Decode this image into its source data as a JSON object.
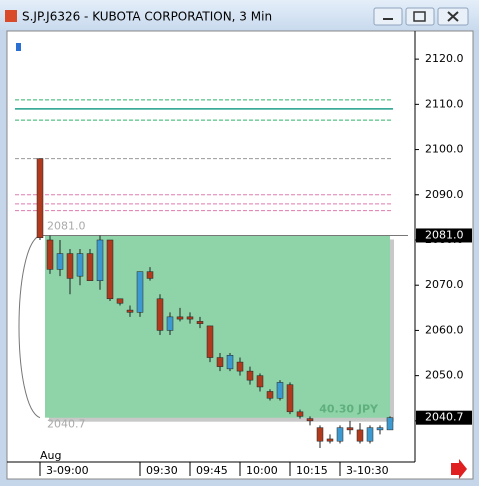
{
  "window_title": "S.JP.J6326 - KUBOTA CORPORATION, 3 Min",
  "chart_data": {
    "type": "candlestick",
    "bull_color": "#3d9ad1",
    "bear_color": "#b03a1e",
    "x": [
      0,
      1,
      2,
      3,
      4,
      5,
      6,
      7,
      8,
      9,
      10,
      11,
      12,
      13,
      14,
      15,
      16,
      17,
      18,
      19,
      20,
      21,
      22,
      23,
      24,
      25,
      26,
      27,
      28,
      29,
      30,
      31,
      32,
      33,
      34,
      35
    ],
    "open": [
      2098,
      2080,
      2073.5,
      2077,
      2072,
      2077,
      2071,
      2080,
      2067,
      2064.5,
      2064,
      2073,
      2067,
      2060,
      2063,
      2063,
      2062,
      2061,
      2054,
      2051.5,
      2053,
      2051,
      2050,
      2046.5,
      2045,
      2048,
      2042,
      2040.5,
      2038.5,
      2036,
      2035.5,
      2038.5,
      2038,
      2035.5,
      2038,
      2038
    ],
    "high": [
      2098,
      2081,
      2080,
      2078,
      2078,
      2078,
      2081,
      2080,
      2067,
      2065.5,
      2073,
      2074,
      2068,
      2064,
      2065,
      2064,
      2063,
      2061,
      2055,
      2055,
      2054,
      2052,
      2050.5,
      2047,
      2049,
      2048.5,
      2042.5,
      2041,
      2039,
      2037,
      2039,
      2040,
      2039.5,
      2039,
      2039,
      2041
    ],
    "low": [
      2080,
      2072.5,
      2072,
      2068,
      2070,
      2071,
      2069,
      2066.5,
      2065.5,
      2063,
      2063,
      2071,
      2059,
      2059,
      2062,
      2061.5,
      2060.5,
      2053,
      2051,
      2051,
      2050,
      2048,
      2046.5,
      2044.5,
      2044.5,
      2041.5,
      2040.5,
      2039,
      2034,
      2035,
      2035,
      2037,
      2035,
      2035,
      2037,
      2038
    ],
    "close": [
      2080.5,
      2073.5,
      2077,
      2071.5,
      2077,
      2071,
      2080,
      2067,
      2066,
      2064,
      2073,
      2071.5,
      2060,
      2063,
      2062.5,
      2062.5,
      2061.5,
      2054,
      2052,
      2054.5,
      2051,
      2049,
      2047.5,
      2045,
      2048.5,
      2042,
      2041,
      2040,
      2035.5,
      2035.5,
      2038.5,
      2038,
      2035.5,
      2038.5,
      2038.5,
      2040.7
    ],
    "xlim": [
      -3.2,
      37.5
    ],
    "xticks": [
      {
        "value": 0,
        "label": "3-09:00"
      },
      {
        "value": 10,
        "label": "09:30"
      },
      {
        "value": 15,
        "label": "09:45"
      },
      {
        "value": 20,
        "label": "10:00"
      },
      {
        "value": 25,
        "label": "10:15"
      },
      {
        "value": 30,
        "label": "3-10:30"
      }
    ],
    "x_month": "Aug",
    "ylim": [
      2030.9,
      2126
    ],
    "yticks": [
      {
        "value": 2040,
        "label": "2040.0"
      },
      {
        "value": 2050,
        "label": "2050.0"
      },
      {
        "value": 2060,
        "label": "2060.0"
      },
      {
        "value": 2070,
        "label": "2070.0"
      },
      {
        "value": 2080,
        "label": "2080.0"
      },
      {
        "value": 2090,
        "label": "2090.0"
      },
      {
        "value": 2100,
        "label": "2100.0"
      },
      {
        "value": 2110,
        "label": "2110.0"
      },
      {
        "value": 2120,
        "label": "2120.0"
      }
    ],
    "levels": [
      {
        "value": 2111,
        "color": "#2fb36a",
        "style": "dashed"
      },
      {
        "value": 2109,
        "color": "#1f9e8a",
        "style": "solid"
      },
      {
        "value": 2106.5,
        "color": "#2fb36a",
        "style": "dashed"
      },
      {
        "value": 2098,
        "color": "#9a9a9a",
        "style": "dashed"
      },
      {
        "value": 2090,
        "color": "#e07ab0",
        "style": "dashed"
      },
      {
        "value": 2088,
        "color": "#e07ab0",
        "style": "dashed"
      },
      {
        "value": 2086.5,
        "color": "#e07ab0",
        "style": "dashed"
      }
    ],
    "range": {
      "high": {
        "value": 2081.0,
        "label": "2081.0"
      },
      "low": {
        "value": 2040.7,
        "label": "2040.7"
      },
      "size": {
        "value": 40.3,
        "label": "40.30 JPY"
      },
      "color": "#8fd4a8"
    }
  }
}
